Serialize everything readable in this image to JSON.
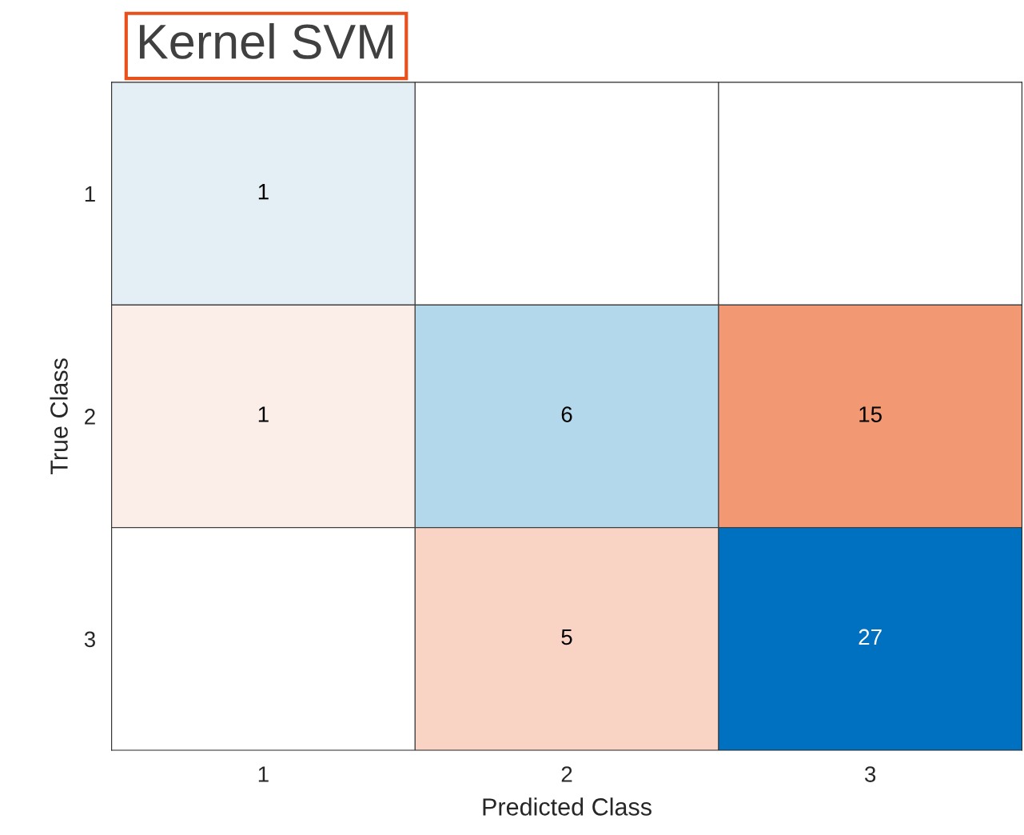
{
  "chart_data": {
    "type": "heatmap",
    "title": "Kernel SVM",
    "xlabel": "Predicted Class",
    "ylabel": "True Class",
    "categories": [
      "1",
      "2",
      "3"
    ],
    "y_categories": [
      "1",
      "2",
      "3"
    ],
    "cells": [
      [
        1,
        null,
        null
      ],
      [
        1,
        6,
        15
      ],
      [
        null,
        5,
        27
      ]
    ],
    "colors": [
      [
        "#e3eef5",
        null,
        null
      ],
      [
        "#fbeee8",
        "#b3d8ec",
        "#f29872"
      ],
      [
        null,
        "#f9d3c4",
        "#0070c0"
      ]
    ],
    "data_labels": true,
    "grid": true
  }
}
